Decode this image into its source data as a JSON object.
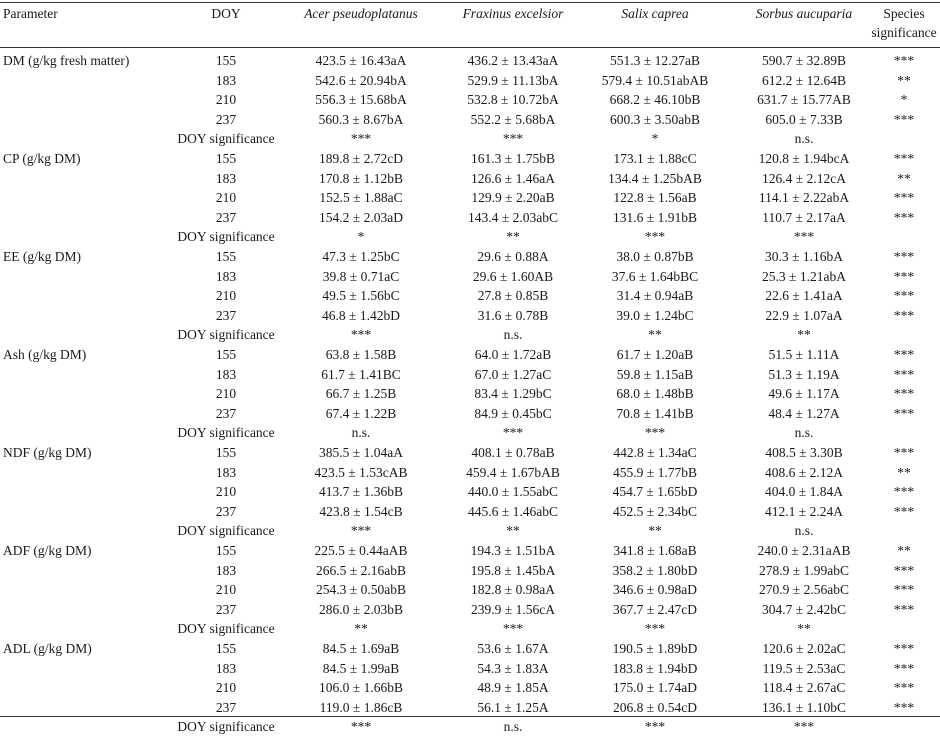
{
  "headers": {
    "parameter": "Parameter",
    "doy": "DOY",
    "species": [
      "Acer pseudoplatanus",
      "Fraxinus excelsior",
      "Salix caprea",
      "Sorbus aucuparia"
    ],
    "sig_line1": "Species",
    "sig_line2": "significance"
  },
  "doy_significance_label": "DOY significance",
  "groups": [
    {
      "parameter": "DM (g/kg fresh matter)",
      "rows": [
        {
          "doy": "155",
          "values": [
            "423.5 ± 16.43aA",
            "436.2 ± 13.43aA",
            "551.3 ± 12.27aB",
            "590.7 ± 32.89B"
          ],
          "sig": "***"
        },
        {
          "doy": "183",
          "values": [
            "542.6 ± 20.94bA",
            "529.9 ± 11.13bA",
            "579.4 ± 10.51abAB",
            "612.2 ± 12.64B"
          ],
          "sig": "**"
        },
        {
          "doy": "210",
          "values": [
            "556.3 ± 15.68bA",
            "532.8 ± 10.72bA",
            "668.2 ± 46.10bB",
            "631.7 ± 15.77AB"
          ],
          "sig": "*"
        },
        {
          "doy": "237",
          "values": [
            "560.3 ± 8.67bA",
            "552.2 ± 5.68bA",
            "600.3 ± 3.50abB",
            "605.0 ± 7.33B"
          ],
          "sig": "***"
        }
      ],
      "doy_sig": [
        "***",
        "***",
        "*",
        "n.s."
      ]
    },
    {
      "parameter": "CP (g/kg DM)",
      "rows": [
        {
          "doy": "155",
          "values": [
            "189.8 ± 2.72cD",
            "161.3 ± 1.75bB",
            "173.1 ± 1.88cC",
            "120.8 ± 1.94bcA"
          ],
          "sig": "***"
        },
        {
          "doy": "183",
          "values": [
            "170.8 ± 1.12bB",
            "126.6 ± 1.46aA",
            "134.4 ± 1.25bAB",
            "126.4 ± 2.12cA"
          ],
          "sig": "**"
        },
        {
          "doy": "210",
          "values": [
            "152.5 ± 1.88aC",
            "129.9 ± 2.20aB",
            "122.8 ± 1.56aB",
            "114.1 ± 2.22abA"
          ],
          "sig": "***"
        },
        {
          "doy": "237",
          "values": [
            "154.2 ± 2.03aD",
            "143.4 ± 2.03abC",
            "131.6 ± 1.91bB",
            "110.7 ± 2.17aA"
          ],
          "sig": "***"
        }
      ],
      "doy_sig": [
        "*",
        "**",
        "***",
        "***"
      ]
    },
    {
      "parameter": "EE (g/kg DM)",
      "rows": [
        {
          "doy": "155",
          "values": [
            "47.3 ± 1.25bC",
            "29.6 ± 0.88A",
            "38.0 ± 0.87bB",
            "30.3 ± 1.16bA"
          ],
          "sig": "***"
        },
        {
          "doy": "183",
          "values": [
            "39.8 ± 0.71aC",
            "29.6 ± 1.60AB",
            "37.6 ± 1.64bBC",
            "25.3 ± 1.21abA"
          ],
          "sig": "***"
        },
        {
          "doy": "210",
          "values": [
            "49.5 ± 1.56bC",
            "27.8 ± 0.85B",
            "31.4 ± 0.94aB",
            "22.6 ± 1.41aA"
          ],
          "sig": "***"
        },
        {
          "doy": "237",
          "values": [
            "46.8 ± 1.42bD",
            "31.6 ± 0.78B",
            "39.0 ± 1.24bC",
            "22.9 ± 1.07aA"
          ],
          "sig": "***"
        }
      ],
      "doy_sig": [
        "***",
        "n.s.",
        "**",
        "**"
      ]
    },
    {
      "parameter": "Ash (g/kg DM)",
      "rows": [
        {
          "doy": "155",
          "values": [
            "63.8 ± 1.58B",
            "64.0 ± 1.72aB",
            "61.7 ± 1.20aB",
            "51.5 ± 1.11A"
          ],
          "sig": "***"
        },
        {
          "doy": "183",
          "values": [
            "61.7 ± 1.41BC",
            "67.0 ± 1.27aC",
            "59.8 ± 1.15aB",
            "51.3 ± 1.19A"
          ],
          "sig": "***"
        },
        {
          "doy": "210",
          "values": [
            "66.7 ± 1.25B",
            "83.4 ± 1.29bC",
            "68.0 ± 1.48bB",
            "49.6 ± 1.17A"
          ],
          "sig": "***"
        },
        {
          "doy": "237",
          "values": [
            "67.4 ± 1.22B",
            "84.9 ± 0.45bC",
            "70.8 ± 1.41bB",
            "48.4 ± 1.27A"
          ],
          "sig": "***"
        }
      ],
      "doy_sig": [
        "n.s.",
        "***",
        "***",
        "n.s."
      ]
    },
    {
      "parameter": "NDF (g/kg DM)",
      "rows": [
        {
          "doy": "155",
          "values": [
            "385.5 ± 1.04aA",
            "408.1 ± 0.78aB",
            "442.8 ± 1.34aC",
            "408.5 ± 3.30B"
          ],
          "sig": "***"
        },
        {
          "doy": "183",
          "values": [
            "423.5 ± 1.53cAB",
            "459.4 ± 1.67bAB",
            "455.9 ± 1.77bB",
            "408.6 ± 2.12A"
          ],
          "sig": "**"
        },
        {
          "doy": "210",
          "values": [
            "413.7 ± 1.36bB",
            "440.0 ± 1.55abC",
            "454.7 ± 1.65bD",
            "404.0 ± 1.84A"
          ],
          "sig": "***"
        },
        {
          "doy": "237",
          "values": [
            "423.8 ± 1.54cB",
            "445.6 ± 1.46abC",
            "452.5 ± 2.34bC",
            "412.1 ± 2.24A"
          ],
          "sig": "***"
        }
      ],
      "doy_sig": [
        "***",
        "**",
        "**",
        "n.s."
      ]
    },
    {
      "parameter": "ADF (g/kg DM)",
      "rows": [
        {
          "doy": "155",
          "values": [
            "225.5 ± 0.44aAB",
            "194.3 ± 1.51bA",
            "341.8 ± 1.68aB",
            "240.0 ± 2.31aAB"
          ],
          "sig": "**"
        },
        {
          "doy": "183",
          "values": [
            "266.5 ± 2.16abB",
            "195.8 ± 1.45bA",
            "358.2 ± 1.80bD",
            "278.9 ± 1.99abC"
          ],
          "sig": "***"
        },
        {
          "doy": "210",
          "values": [
            "254.3 ± 0.50abB",
            "182.8 ± 0.98aA",
            "346.6 ± 0.98aD",
            "270.9 ± 2.56abC"
          ],
          "sig": "***"
        },
        {
          "doy": "237",
          "values": [
            "286.0 ± 2.03bB",
            "239.9 ± 1.56cA",
            "367.7 ± 2.47cD",
            "304.7 ± 2.42bC"
          ],
          "sig": "***"
        }
      ],
      "doy_sig": [
        "**",
        "***",
        "***",
        "**"
      ]
    },
    {
      "parameter": "ADL (g/kg DM)",
      "rows": [
        {
          "doy": "155",
          "values": [
            "84.5 ± 1.69aB",
            "53.6 ± 1.67A",
            "190.5 ± 1.89bD",
            "120.6 ± 2.02aC"
          ],
          "sig": "***"
        },
        {
          "doy": "183",
          "values": [
            "84.5 ± 1.99aB",
            "54.3 ± 1.83A",
            "183.8 ± 1.94bD",
            "119.5 ± 2.53aC"
          ],
          "sig": "***"
        },
        {
          "doy": "210",
          "values": [
            "106.0 ± 1.66bB",
            "48.9 ± 1.85A",
            "175.0 ± 1.74aD",
            "118.4 ± 2.67aC"
          ],
          "sig": "***"
        },
        {
          "doy": "237",
          "values": [
            "119.0 ± 1.86cB",
            "56.1 ± 1.25A",
            "206.8 ± 0.54cD",
            "136.1 ± 1.10bC"
          ],
          "sig": "***"
        }
      ],
      "doy_sig": [
        "***",
        "n.s.",
        "***",
        "***"
      ]
    }
  ]
}
